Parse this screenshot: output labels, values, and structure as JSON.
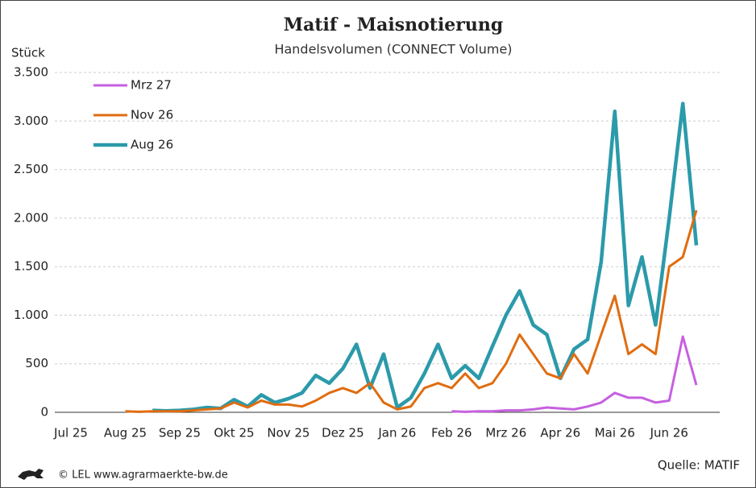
{
  "chart_data": {
    "type": "line",
    "title": "Matif - Maisnotierung",
    "subtitle": "Handelsvolumen (CONNECT Volume)",
    "y_label": "Stück",
    "source": "Quelle: MATIF",
    "footer": "© LEL www.agrarmaerkte-bw.de",
    "categories": [
      "Jul 25",
      null,
      null,
      null,
      "Aug 25",
      null,
      null,
      null,
      "Sep 25",
      null,
      null,
      null,
      "Okt 25",
      null,
      null,
      null,
      "Nov 25",
      null,
      null,
      null,
      "Dez 25",
      null,
      null,
      null,
      "Jan 26",
      null,
      null,
      null,
      "Feb 26",
      null,
      null,
      null,
      "Mrz 26",
      null,
      null,
      null,
      "Apr 26",
      null,
      null,
      null,
      "Mai 26",
      null,
      null,
      null,
      "Jun 26",
      null,
      null,
      null
    ],
    "series": [
      {
        "name": "Mrz 27",
        "color": "#c660e0",
        "values": [
          null,
          null,
          null,
          null,
          null,
          null,
          null,
          null,
          null,
          null,
          null,
          null,
          null,
          null,
          null,
          null,
          null,
          null,
          null,
          null,
          null,
          null,
          null,
          null,
          null,
          null,
          null,
          null,
          10,
          5,
          10,
          10,
          20,
          20,
          30,
          50,
          40,
          30,
          60,
          100,
          200,
          150,
          150,
          100,
          120,
          780,
          280,
          null
        ]
      },
      {
        "name": "Nov 26",
        "color": "#e06c10",
        "values": [
          null,
          null,
          null,
          null,
          10,
          5,
          10,
          10,
          10,
          20,
          30,
          40,
          100,
          50,
          120,
          80,
          80,
          60,
          120,
          200,
          250,
          200,
          300,
          100,
          30,
          60,
          250,
          300,
          250,
          400,
          250,
          300,
          500,
          800,
          600,
          400,
          350,
          600,
          400,
          800,
          1200,
          600,
          700,
          600,
          1500,
          1600,
          2080,
          null
        ]
      },
      {
        "name": "Aug 26",
        "color": "#2b9aaa",
        "values": [
          null,
          null,
          null,
          null,
          null,
          null,
          20,
          15,
          20,
          30,
          50,
          40,
          130,
          60,
          180,
          100,
          140,
          200,
          380,
          300,
          450,
          700,
          250,
          600,
          50,
          150,
          400,
          700,
          350,
          480,
          350,
          680,
          1000,
          1250,
          900,
          800,
          350,
          650,
          750,
          1550,
          3100,
          1100,
          1600,
          900,
          2000,
          3180,
          1720,
          null
        ]
      }
    ],
    "ylim": [
      0,
      3500
    ],
    "yticks": [
      0,
      500,
      {
        "value": 1000,
        "label": "1.000"
      },
      {
        "value": 1500,
        "label": "1.500"
      },
      {
        "value": 2000,
        "label": "2.000"
      },
      {
        "value": 2500,
        "label": "2.500"
      },
      {
        "value": 3000,
        "label": "3.000"
      },
      {
        "value": 3500,
        "label": "3.500"
      }
    ],
    "grid": true,
    "legend": "upper-left"
  }
}
